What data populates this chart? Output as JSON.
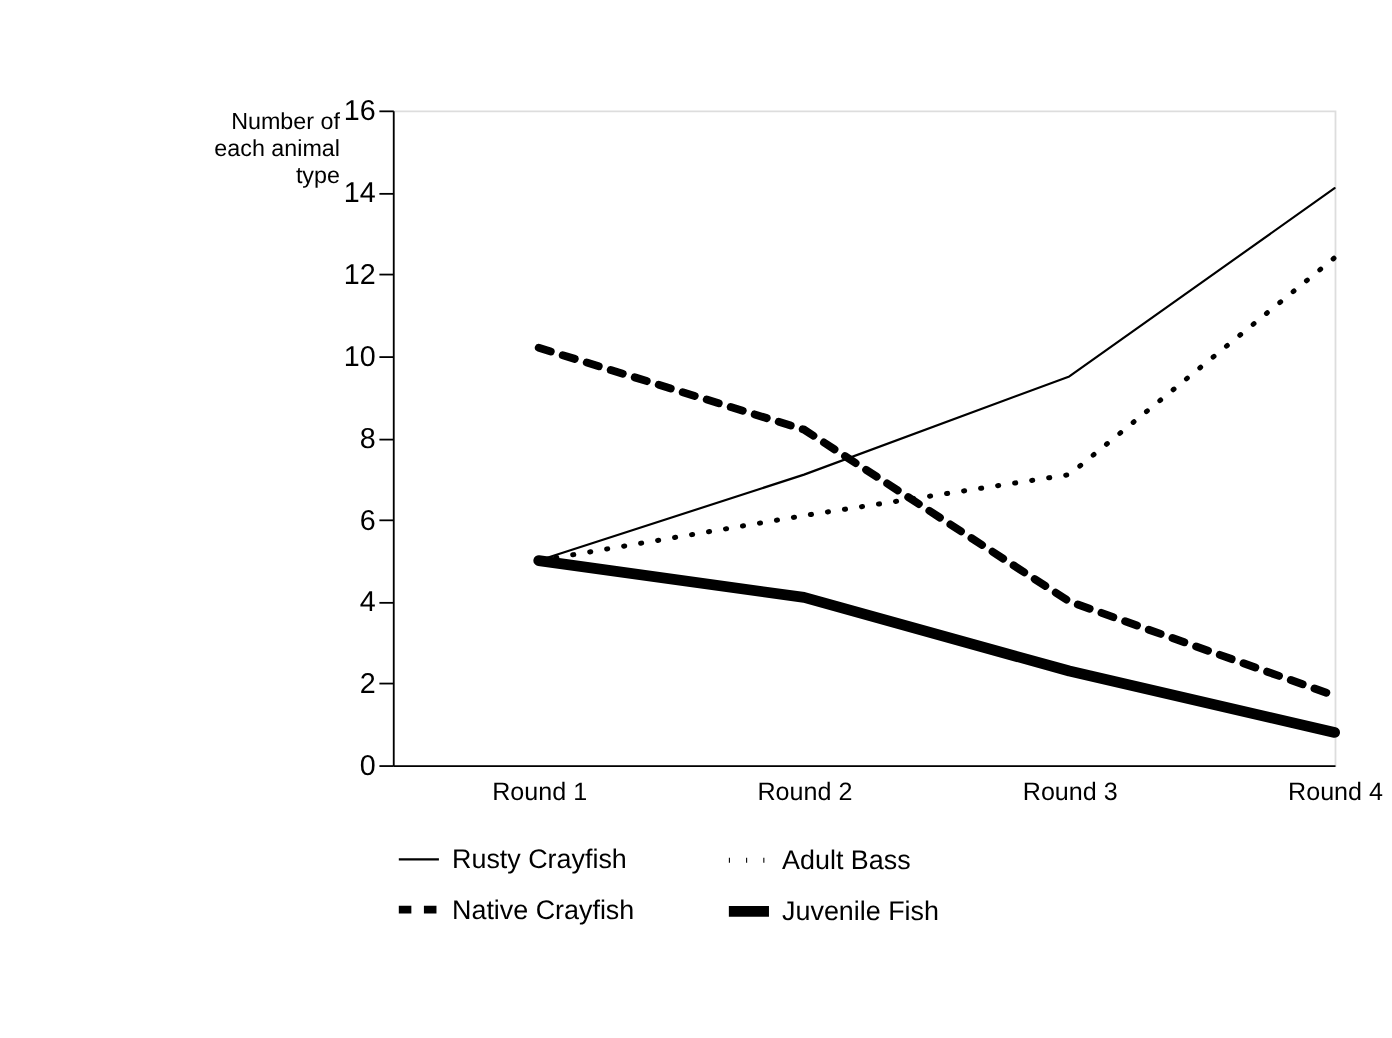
{
  "chart_data": {
    "type": "line",
    "ylabel": "Number of each animal type",
    "categories": [
      "Round 1",
      "Round 2",
      "Round 3",
      "Round 4"
    ],
    "ylim": [
      0,
      16
    ],
    "yticks": [
      0,
      2,
      4,
      6,
      8,
      10,
      12,
      14,
      16
    ],
    "grid": false,
    "legend": "bottom",
    "marker": "none",
    "series": [
      {
        "name": "Rusty Crayfish",
        "color": "#000000",
        "line_style": "solid",
        "values": [
          5,
          7.1,
          9.5,
          14.1
        ]
      },
      {
        "name": "Adult Bass",
        "color": "#000000",
        "line_style": "dotted",
        "values": [
          5,
          6.1,
          7.1,
          12.4
        ]
      },
      {
        "name": "Native Crayfish",
        "color": "#000000",
        "line_style": "dashed",
        "values": [
          10.2,
          8.2,
          4.0,
          1.7
        ]
      },
      {
        "name": "Juvenile Fish",
        "color": "#000000",
        "line_style": "solid",
        "values": [
          5,
          4.1,
          2.3,
          0.8
        ]
      }
    ]
  }
}
